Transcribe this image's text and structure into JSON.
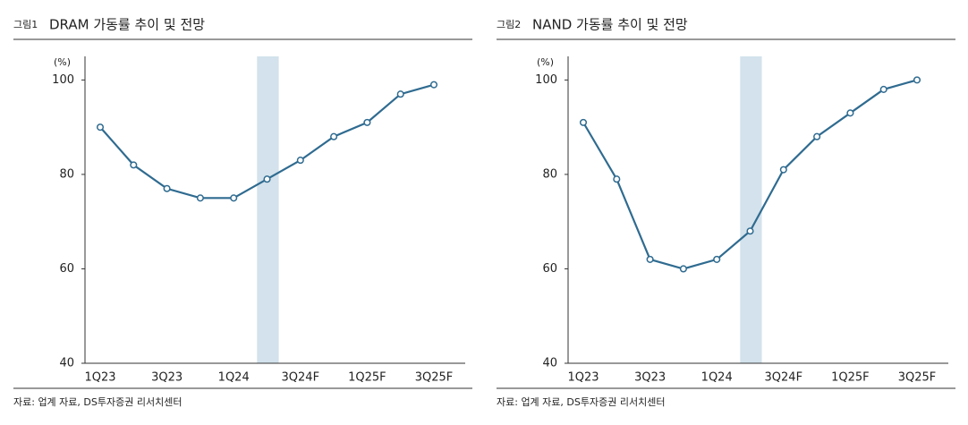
{
  "chart_data": [
    {
      "type": "line",
      "label": "그림1",
      "title": "DRAM 가동률 추이 및 전망",
      "unit": "(%)",
      "categories": [
        "1Q23",
        null,
        "3Q23",
        null,
        "1Q24",
        null,
        "3Q24F",
        null,
        "1Q25F",
        null,
        "3Q25F"
      ],
      "values": [
        90,
        82,
        77,
        75,
        75,
        79,
        83,
        88,
        91,
        97,
        99
      ],
      "color": "#2f6b90",
      "ylim": [
        40,
        105
      ],
      "yticks": [
        40,
        60,
        80,
        100
      ],
      "source": "자료: 업계 자료, DS투자증권 리서치센터"
    },
    {
      "type": "line",
      "label": "그림2",
      "title": "NAND 가동률 추이 및 전망",
      "unit": "(%)",
      "categories": [
        "1Q23",
        null,
        "3Q23",
        null,
        "1Q24",
        null,
        "3Q24F",
        null,
        "1Q25F",
        null,
        "3Q25F"
      ],
      "values": [
        91,
        79,
        62,
        60,
        62,
        68,
        81,
        88,
        93,
        98,
        100
      ],
      "color": "#2f6b90",
      "ylim": [
        40,
        105
      ],
      "yticks": [
        40,
        60,
        80,
        100
      ],
      "source": "자료: 업계 자료, DS투자증권 리서치센터"
    }
  ]
}
